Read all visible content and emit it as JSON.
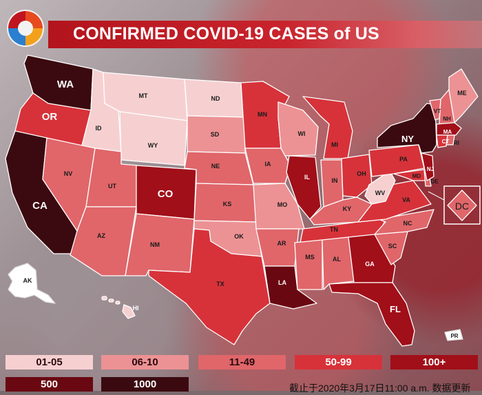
{
  "title": "CONFIRMED COVID-19 CASES of US",
  "colors": {
    "c1": "#f6d0d1",
    "c2": "#ec9294",
    "c3": "#e0666a",
    "c4": "#d7323a",
    "c5": "#a10f19",
    "c6": "#6a0812",
    "c7": "#3b0a10"
  },
  "legend": [
    {
      "label": "01-05",
      "level": "c1"
    },
    {
      "label": "06-10",
      "level": "c2"
    },
    {
      "label": "11-49",
      "level": "c3"
    },
    {
      "label": "50-99",
      "level": "c4"
    },
    {
      "label": "100+",
      "level": "c5"
    },
    {
      "label": "500",
      "level": "c6"
    },
    {
      "label": "1000",
      "level": "c7"
    }
  ],
  "states": [
    {
      "abbr": "WA",
      "level": "c7"
    },
    {
      "abbr": "OR",
      "level": "c4"
    },
    {
      "abbr": "CA",
      "level": "c7"
    },
    {
      "abbr": "ID",
      "level": "c1"
    },
    {
      "abbr": "NV",
      "level": "c3"
    },
    {
      "abbr": "MT",
      "level": "c1"
    },
    {
      "abbr": "WY",
      "level": "c1"
    },
    {
      "abbr": "UT",
      "level": "c3"
    },
    {
      "abbr": "AZ",
      "level": "c3"
    },
    {
      "abbr": "CO",
      "level": "c5"
    },
    {
      "abbr": "NM",
      "level": "c3"
    },
    {
      "abbr": "ND",
      "level": "c1"
    },
    {
      "abbr": "SD",
      "level": "c2"
    },
    {
      "abbr": "NE",
      "level": "c3"
    },
    {
      "abbr": "KS",
      "level": "c3"
    },
    {
      "abbr": "OK",
      "level": "c2"
    },
    {
      "abbr": "TX",
      "level": "c4"
    },
    {
      "abbr": "MN",
      "level": "c4"
    },
    {
      "abbr": "IA",
      "level": "c3"
    },
    {
      "abbr": "MO",
      "level": "c2"
    },
    {
      "abbr": "AR",
      "level": "c3"
    },
    {
      "abbr": "LA",
      "level": "c6"
    },
    {
      "abbr": "WI",
      "level": "c2"
    },
    {
      "abbr": "IL",
      "level": "c5"
    },
    {
      "abbr": "MI",
      "level": "c4"
    },
    {
      "abbr": "IN",
      "level": "c3"
    },
    {
      "abbr": "OH",
      "level": "c4"
    },
    {
      "abbr": "KY",
      "level": "c3"
    },
    {
      "abbr": "TN",
      "level": "c4"
    },
    {
      "abbr": "MS",
      "level": "c3"
    },
    {
      "abbr": "AL",
      "level": "c3"
    },
    {
      "abbr": "GA",
      "level": "c5"
    },
    {
      "abbr": "FL",
      "level": "c5"
    },
    {
      "abbr": "SC",
      "level": "c3"
    },
    {
      "abbr": "NC",
      "level": "c3"
    },
    {
      "abbr": "VA",
      "level": "c4"
    },
    {
      "abbr": "WV",
      "level": "c1"
    },
    {
      "abbr": "PA",
      "level": "c4"
    },
    {
      "abbr": "NY",
      "level": "c7"
    },
    {
      "abbr": "VT",
      "level": "c3"
    },
    {
      "abbr": "NH",
      "level": "c3"
    },
    {
      "abbr": "ME",
      "level": "c2"
    },
    {
      "abbr": "MA",
      "level": "c5"
    },
    {
      "abbr": "CT",
      "level": "c4"
    },
    {
      "abbr": "RI",
      "level": "c3"
    },
    {
      "abbr": "NJ",
      "level": "c5"
    },
    {
      "abbr": "DE",
      "level": "c3"
    },
    {
      "abbr": "MD",
      "level": "c4"
    },
    {
      "abbr": "DC",
      "level": "c3"
    },
    {
      "abbr": "AK",
      "level": "white"
    },
    {
      "abbr": "HI",
      "level": "c1"
    },
    {
      "abbr": "PR",
      "level": "white"
    }
  ],
  "footer": "截止于2020年3月17日11:00 a.m. 数据更新"
}
